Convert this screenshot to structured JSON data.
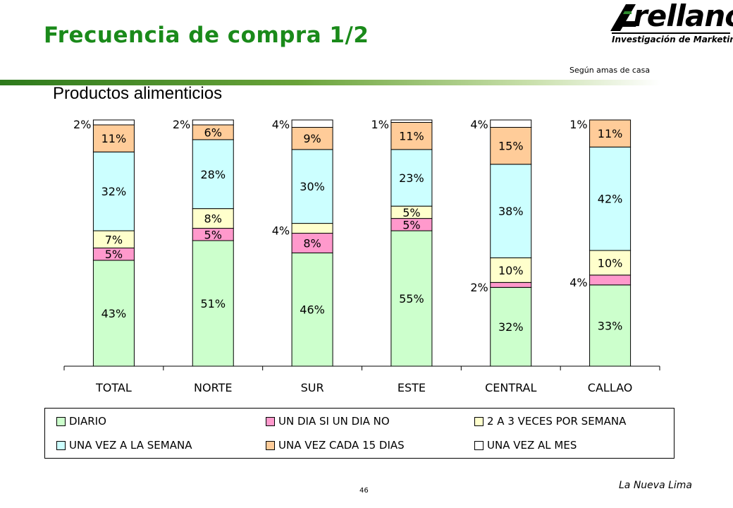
{
  "page": {
    "title": "Frecuencia de compra 1/2",
    "note": "Según amas de casa",
    "footer": "La Nueva Lima",
    "page_number": "46"
  },
  "logo": {
    "word": "rellano",
    "tagline": "Investigación de Marketing"
  },
  "chart_data": {
    "type": "bar",
    "stacked": true,
    "title": "Productos alimenticios",
    "categories": [
      "TOTAL",
      "NORTE",
      "SUR",
      "ESTE",
      "CENTRAL",
      "CALLAO"
    ],
    "ylim": [
      0,
      100
    ],
    "grid": false,
    "legend_position": "bottom",
    "series": [
      {
        "name": "DIARIO",
        "color": "#ccffcc",
        "values": [
          43,
          51,
          46,
          55,
          32,
          33
        ]
      },
      {
        "name": "UN DIA SI UN DIA NO",
        "color": "#ff99cc",
        "values": [
          5,
          5,
          8,
          5,
          2,
          4
        ]
      },
      {
        "name": "2 A 3 VECES POR SEMANA",
        "color": "#ffffcc",
        "values": [
          7,
          8,
          4,
          5,
          10,
          10
        ]
      },
      {
        "name": "UNA VEZ A LA SEMANA",
        "color": "#ccffff",
        "values": [
          32,
          28,
          30,
          23,
          38,
          42
        ]
      },
      {
        "name": "UNA VEZ CADA 15 DIAS",
        "color": "#ffcc99",
        "values": [
          11,
          6,
          9,
          11,
          15,
          11
        ]
      },
      {
        "name": "UNA VEZ AL MES",
        "color": "#ffffff",
        "values": [
          2,
          2,
          4,
          1,
          4,
          1
        ]
      }
    ]
  }
}
